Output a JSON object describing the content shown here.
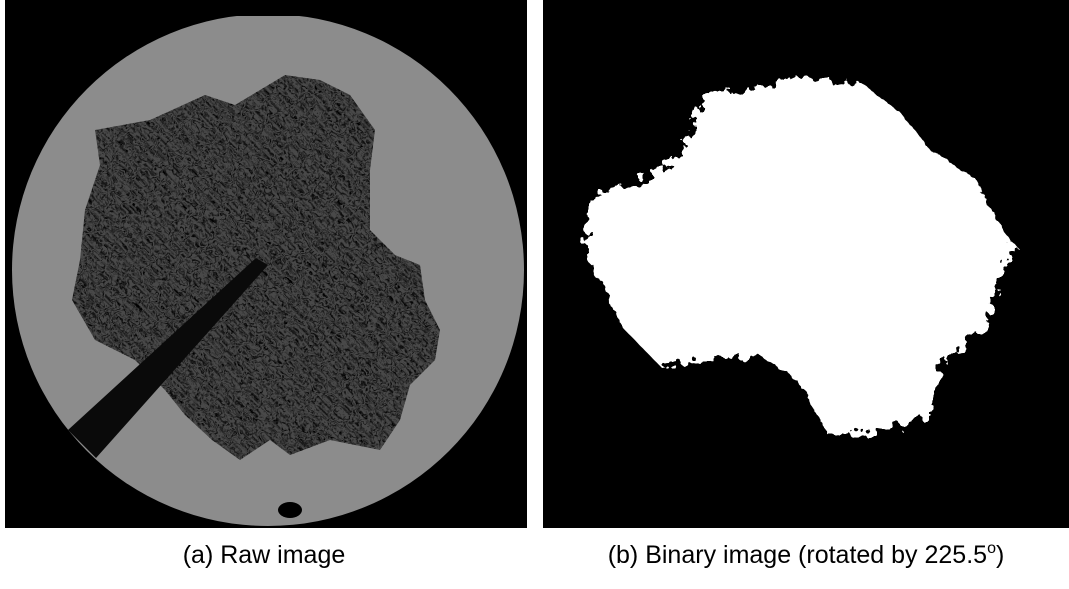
{
  "panels": [
    {
      "caption": [
        "(a) Raw image"
      ]
    },
    {
      "caption": [
        "(b) Binary image (rotated by 225.5",
        "o",
        ")"
      ]
    }
  ]
}
